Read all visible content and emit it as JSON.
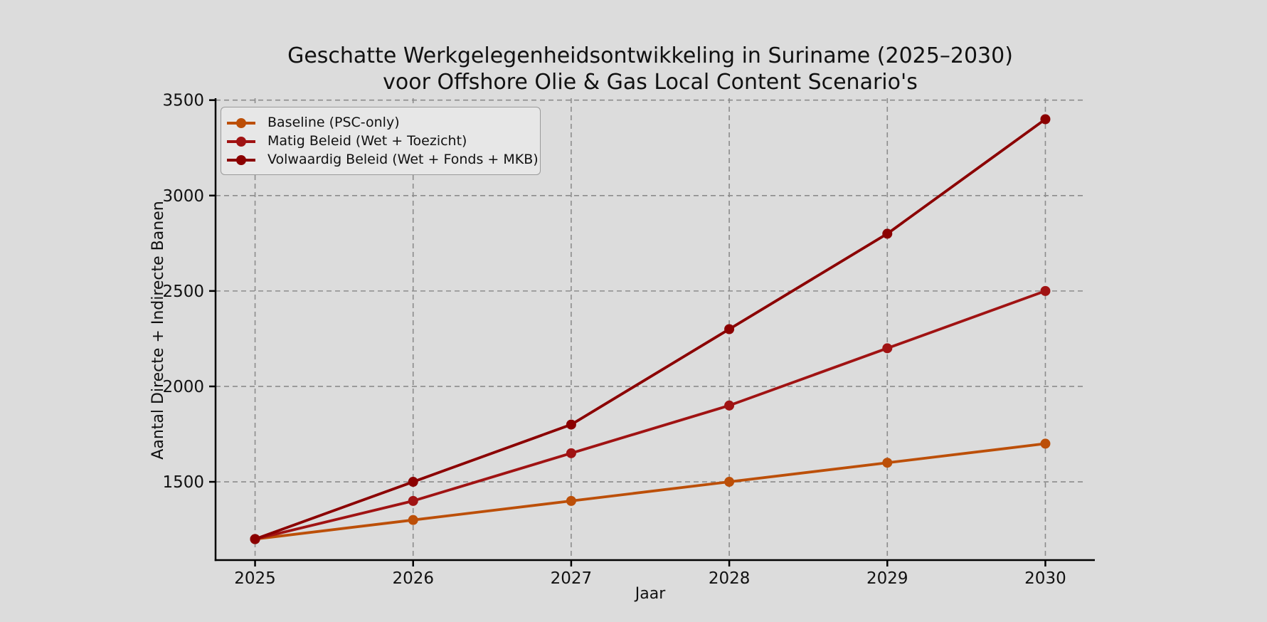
{
  "chart_data": {
    "type": "line",
    "title": "Geschatte Werkgelegenheidsontwikkeling in Suriname (2025–2030)",
    "subtitle": "voor Offshore Olie & Gas Local Content Scenario's",
    "xlabel": "Jaar",
    "ylabel": "Aantal Directe + Indirecte Banen",
    "x": [
      2025,
      2026,
      2027,
      2028,
      2029,
      2030
    ],
    "series": [
      {
        "name": "Baseline (PSC-only)",
        "color": "#BC4F08",
        "values": [
          1200,
          1300,
          1400,
          1500,
          1600,
          1700
        ]
      },
      {
        "name": "Matig Beleid (Wet + Toezicht)",
        "color": "#A01313",
        "values": [
          1200,
          1400,
          1650,
          1900,
          2200,
          2500
        ]
      },
      {
        "name": "Volwaardig Beleid (Wet + Fonds + MKB)",
        "color": "#8B0000",
        "values": [
          1200,
          1500,
          1800,
          2300,
          2800,
          3400
        ]
      }
    ],
    "xlim": [
      2024.75,
      2030.25
    ],
    "ylim": [
      1090,
      3510
    ],
    "xticks": [
      2025,
      2026,
      2027,
      2028,
      2029,
      2030
    ],
    "yticks": [
      1500,
      2000,
      2500,
      3000,
      3500
    ],
    "grid": true,
    "grid_style": "dashed",
    "legend_position": "upper left",
    "colors": {
      "background": "#DCDCDC",
      "grid": "#8C8C8C",
      "axis": "#000000",
      "text": "#111111",
      "legend_background": "#E7E7E7",
      "legend_border": "#9A9A9A"
    }
  }
}
